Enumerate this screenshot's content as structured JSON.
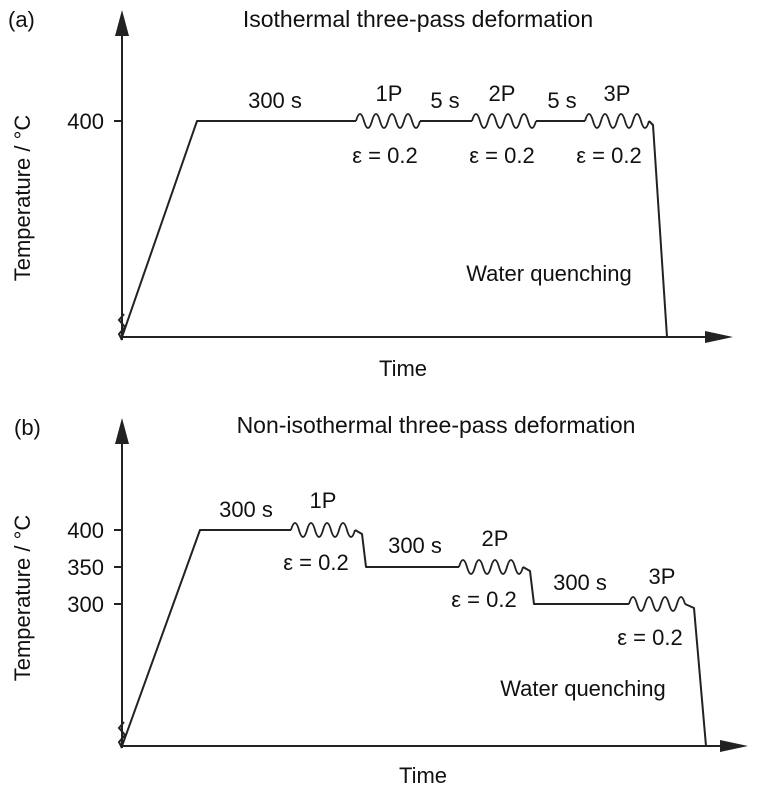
{
  "panels": [
    {
      "id": "a",
      "panel_label": "(a)",
      "title": "Isothermal three-pass deformation",
      "ylabel": "Temperature / °C",
      "xlabel": "Time",
      "yticks": [
        "400"
      ],
      "hold_label": "300 s",
      "passes": [
        {
          "name": "1P",
          "strain": "ε = 0.2"
        },
        {
          "name": "2P",
          "strain": "ε = 0.2"
        },
        {
          "name": "3P",
          "strain": "ε = 0.2"
        }
      ],
      "intervals": [
        "5 s",
        "5 s"
      ],
      "quench_label": "Water quenching"
    },
    {
      "id": "b",
      "panel_label": "(b)",
      "title": "Non-isothermal three-pass deformation",
      "ylabel": "Temperature / °C",
      "xlabel": "Time",
      "yticks": [
        "400",
        "350",
        "300"
      ],
      "hold_label": "300 s",
      "passes": [
        {
          "name": "1P",
          "strain": "ε = 0.2"
        },
        {
          "name": "2P",
          "strain": "ε = 0.2"
        },
        {
          "name": "3P",
          "strain": "ε = 0.2"
        }
      ],
      "intervals": [
        "300 s",
        "300 s"
      ],
      "quench_label": "Water quenching"
    }
  ]
}
